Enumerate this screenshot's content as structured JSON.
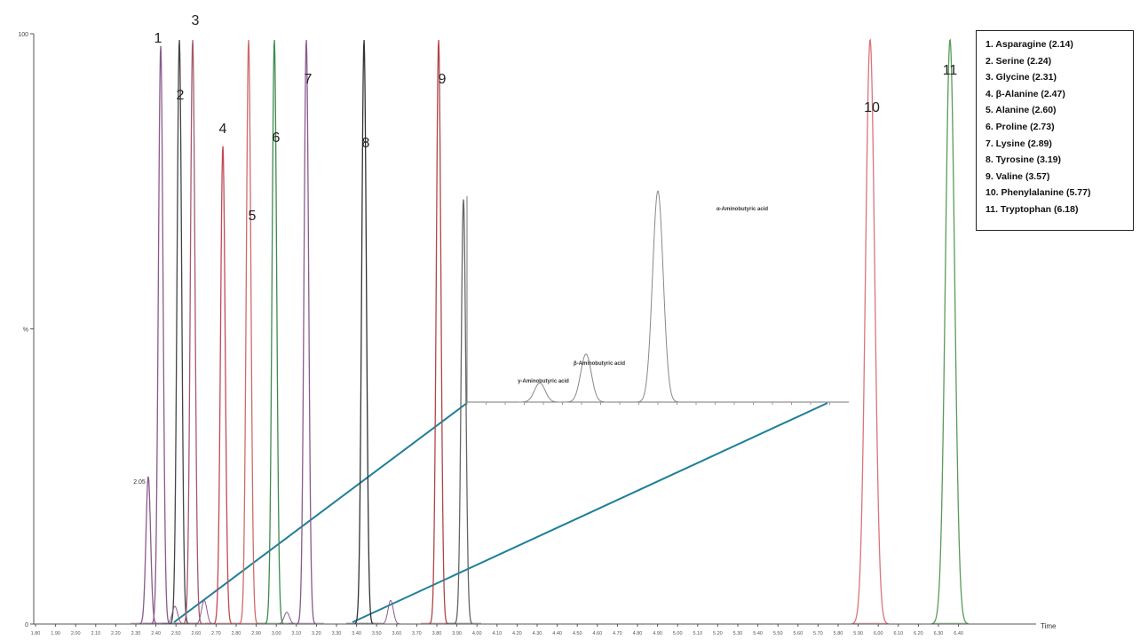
{
  "chart_data": {
    "type": "line",
    "xlabel": "Time",
    "ylabel": "%",
    "xlim": [
      1.85,
      6.75
    ],
    "ylim": [
      0,
      100
    ],
    "x_ticks": [
      "1.80",
      "1.90",
      "2.00",
      "2.10",
      "2.20",
      "2.30",
      "2.40",
      "2.50",
      "2.60",
      "2.70",
      "2.80",
      "2.90",
      "3.00",
      "3.10",
      "3.20",
      "3.30",
      "3.40",
      "3.50",
      "3.60",
      "3.70",
      "3.80",
      "3.90",
      "4.00",
      "4.10",
      "4.20",
      "4.30",
      "4.40",
      "4.50",
      "4.60",
      "4.70",
      "4.80",
      "4.90",
      "5.00",
      "5.10",
      "5.20",
      "5.30",
      "5.40",
      "5.50",
      "5.60",
      "5.70",
      "5.80",
      "5.90",
      "6.00",
      "6.10",
      "6.20",
      "6.30",
      "6.40"
    ],
    "y_ticks": [
      {
        "value": 100,
        "label": "100"
      },
      {
        "value": 50,
        "label": "%"
      },
      {
        "value": 0,
        "label": "0"
      }
    ],
    "peaks": [
      {
        "label": "1",
        "rt": 2.14,
        "height": 98,
        "color": "#8a5a8c"
      },
      {
        "label": "2",
        "rt": 2.24,
        "height": 99,
        "color": "#444444"
      },
      {
        "label": "3",
        "rt": 2.31,
        "height": 99,
        "color": "#a55a6a"
      },
      {
        "label": "4",
        "rt": 2.47,
        "height": 81,
        "color": "#c04a55"
      },
      {
        "label": "5",
        "rt": 2.6,
        "height": 99,
        "color": "#d06a6a"
      },
      {
        "label": "6",
        "rt": 2.73,
        "height": 99,
        "color": "#3f8a4f"
      },
      {
        "label": "7",
        "rt": 2.89,
        "height": 99,
        "color": "#8a5a8c"
      },
      {
        "label": "8",
        "rt": 3.19,
        "height": 99,
        "color": "#333333"
      },
      {
        "label": "9",
        "rt": 3.57,
        "height": 99,
        "color": "#b0454a"
      },
      {
        "label": "10",
        "rt": 5.77,
        "height": 99,
        "color": "#d9747a"
      },
      {
        "label": "11",
        "rt": 6.18,
        "height": 99,
        "color": "#5a9a5a"
      }
    ],
    "minor_peaks": [
      {
        "label": "2.05",
        "rt": 2.05,
        "height": 25,
        "color": "#8a5a8c"
      },
      {
        "label": "",
        "rt": 3.69,
        "height": 72,
        "color": "#666666"
      }
    ],
    "legend": [
      "1.  Asparagine (2.14)",
      "2.  Serine (2.24)",
      "3.  Glycine (2.31)",
      "4.  β-Alanine (2.47)",
      "5.  Alanine (2.60)",
      "6.  Proline (2.73)",
      "7.  Lysine (2.89)",
      "8.  Tyrosine (3.19)",
      "9.  Valine (3.57)",
      "10.  Phenylalanine (5.77)",
      "11.  Tryptophan (6.18)"
    ],
    "inset": {
      "annotations": [
        {
          "text": "γ-Aminobutyric acid",
          "height": 4
        },
        {
          "text": "β-Aminobutyric acid",
          "height": 10
        },
        {
          "text": "α-Aminobutyric acid",
          "height": 44
        }
      ]
    },
    "grid": false
  }
}
